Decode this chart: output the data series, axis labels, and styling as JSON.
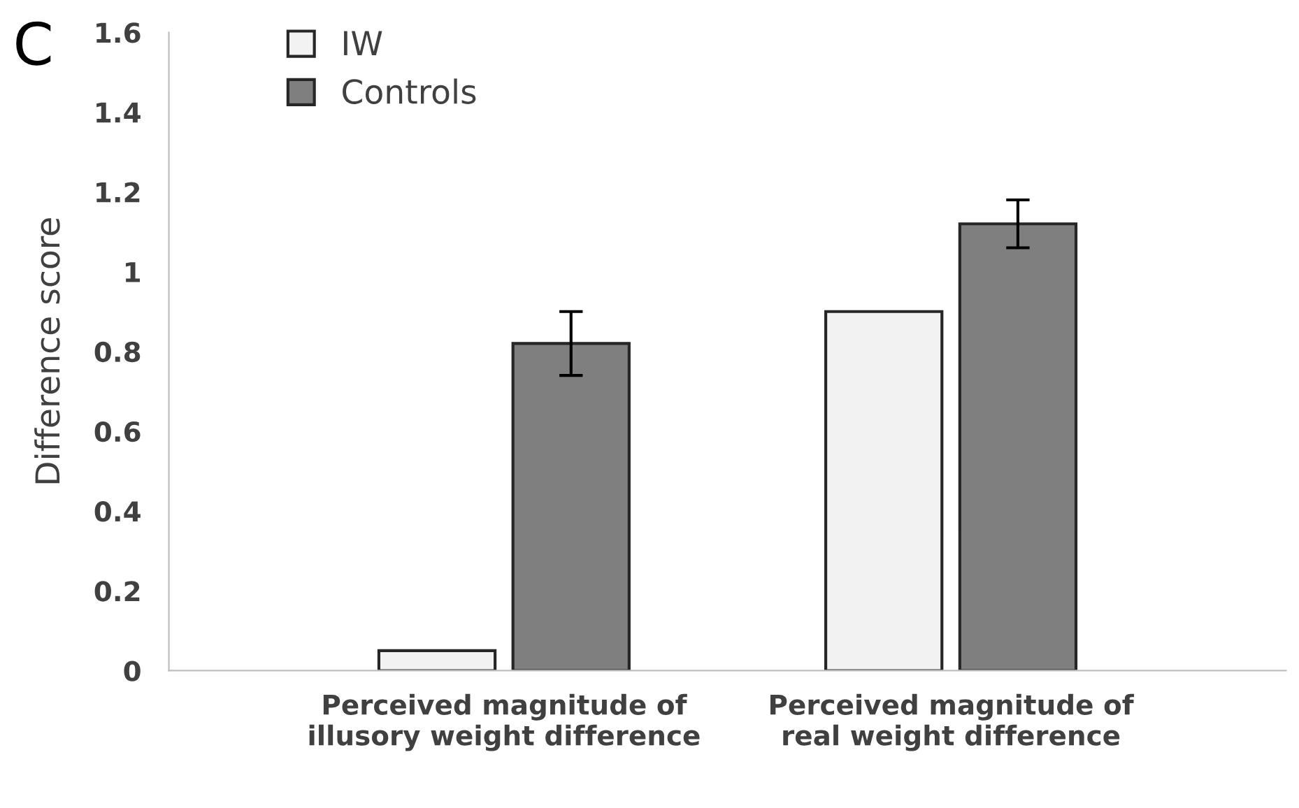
{
  "chart_data": {
    "type": "bar",
    "ylabel": "Difference score",
    "annotations": [
      "C"
    ],
    "categories": [
      "Perceived magnitude of\nillusory weight difference",
      "Perceived magnitude of\nreal weight difference"
    ],
    "series": [
      {
        "name": "IW",
        "color": "#f2f2f2",
        "values": [
          0.05,
          0.9
        ]
      },
      {
        "name": "Controls",
        "color": "#7f7f7f",
        "values": [
          0.82,
          1.12
        ],
        "errors": [
          0.08,
          0.06
        ]
      }
    ],
    "ylim": [
      0,
      1.6
    ],
    "yticks": [
      0,
      0.2,
      0.4,
      0.6,
      0.8,
      1,
      1.2,
      1.4,
      1.6
    ],
    "grid": false,
    "legend": "top left"
  }
}
